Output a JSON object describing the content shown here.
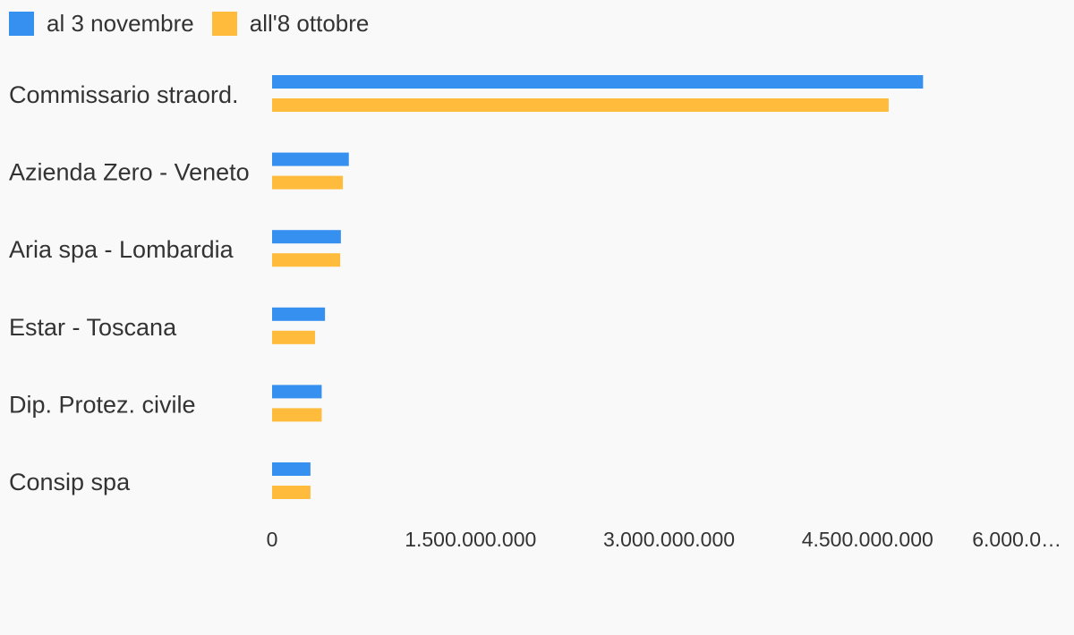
{
  "chart_data": {
    "type": "bar",
    "orientation": "horizontal",
    "title": "",
    "xlabel": "",
    "ylabel": "",
    "categories": [
      "Commissario straord.",
      "Azienda Zero - Veneto",
      "Aria spa - Lombardia",
      "Estar - Toscana",
      "Dip. Protez. civile",
      "Consip spa"
    ],
    "series": [
      {
        "name": "al 3 novembre",
        "color": "#3590f0",
        "values": [
          4920000000,
          580000000,
          520000000,
          400000000,
          375000000,
          290000000
        ]
      },
      {
        "name": "all'8 ottobre",
        "color": "#ffbb3b",
        "values": [
          4660000000,
          535000000,
          515000000,
          325000000,
          375000000,
          290000000
        ]
      }
    ],
    "xlim": [
      0,
      6000000000
    ],
    "ticks": [
      0,
      1500000000,
      3000000000,
      4500000000,
      6000000000
    ],
    "tick_labels": [
      "0",
      "1.500.000.000",
      "3.000.000.000",
      "4.500.000.000",
      "6.000.0…"
    ],
    "legend_position": "top-left",
    "grid": false
  }
}
